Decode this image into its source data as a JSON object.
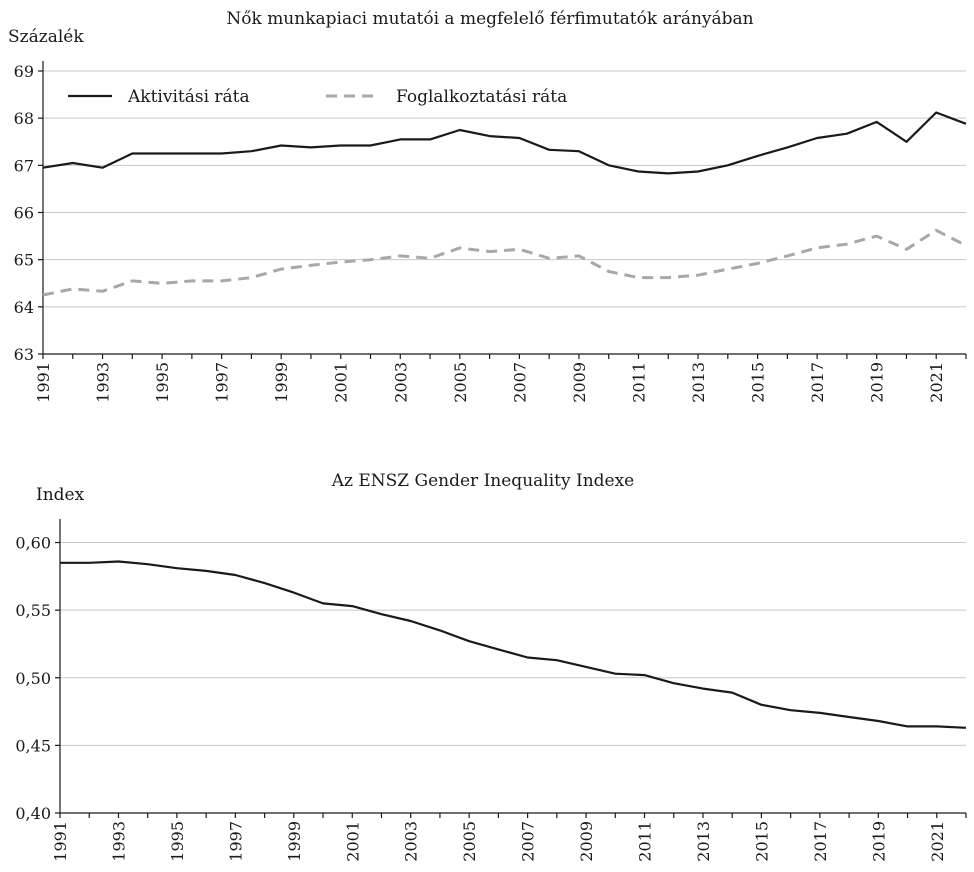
{
  "chart_data": [
    {
      "type": "line",
      "title": "Nők munkapiaci mutatói a megfelelő férfimutatók arányában",
      "ylabel": "Százalék",
      "xlabel": "",
      "x": [
        1991,
        1992,
        1993,
        1994,
        1995,
        1996,
        1997,
        1998,
        1999,
        2000,
        2001,
        2002,
        2003,
        2004,
        2005,
        2006,
        2007,
        2008,
        2009,
        2010,
        2011,
        2012,
        2013,
        2014,
        2015,
        2016,
        2017,
        2018,
        2019,
        2020,
        2021,
        2022
      ],
      "ylim": [
        63,
        69
      ],
      "yticks": [
        "63",
        "64",
        "65",
        "66",
        "67",
        "68",
        "69"
      ],
      "xticks": [
        "1991",
        "1993",
        "1995",
        "1997",
        "1999",
        "2001",
        "2003",
        "2005",
        "2007",
        "2009",
        "2011",
        "2013",
        "2015",
        "2017",
        "2019",
        "2021"
      ],
      "grid": true,
      "legend_position": "top-left",
      "series": [
        {
          "name": "Aktivitási ráta",
          "color": "#1a1a1a",
          "dash": "solid",
          "values": [
            66.95,
            67.05,
            66.95,
            67.25,
            67.25,
            67.25,
            67.25,
            67.3,
            67.42,
            67.38,
            67.42,
            67.42,
            67.55,
            67.55,
            67.75,
            67.62,
            67.58,
            67.33,
            67.3,
            67.0,
            66.87,
            66.83,
            66.87,
            67.0,
            67.2,
            67.38,
            67.58,
            67.67,
            67.92,
            67.5,
            68.12,
            67.88
          ]
        },
        {
          "name": "Foglalkoztatási ráta",
          "color": "#a8a8a8",
          "dash": "dashed",
          "values": [
            64.25,
            64.38,
            64.33,
            64.55,
            64.5,
            64.55,
            64.55,
            64.62,
            64.8,
            64.88,
            64.95,
            65.0,
            65.08,
            65.03,
            65.25,
            65.17,
            65.22,
            65.03,
            65.08,
            64.75,
            64.62,
            64.62,
            64.67,
            64.8,
            64.92,
            65.08,
            65.25,
            65.33,
            65.5,
            65.22,
            65.62,
            65.3
          ]
        }
      ]
    },
    {
      "type": "line",
      "title": "Az ENSZ Gender Inequality Indexe",
      "ylabel": "Index",
      "xlabel": "",
      "x": [
        1991,
        1992,
        1993,
        1994,
        1995,
        1996,
        1997,
        1998,
        1999,
        2000,
        2001,
        2002,
        2003,
        2004,
        2005,
        2006,
        2007,
        2008,
        2009,
        2010,
        2011,
        2012,
        2013,
        2014,
        2015,
        2016,
        2017,
        2018,
        2019,
        2020,
        2021,
        2022
      ],
      "ylim": [
        0.4,
        0.61
      ],
      "yticks": [
        "0,40",
        "0,45",
        "0,50",
        "0,55",
        "0,60"
      ],
      "xticks": [
        "1991",
        "1993",
        "1995",
        "1997",
        "1999",
        "2001",
        "2003",
        "2005",
        "2007",
        "2009",
        "2011",
        "2013",
        "2015",
        "2017",
        "2019",
        "2021"
      ],
      "grid": true,
      "series": [
        {
          "color": "#1a1a1a",
          "dash": "solid",
          "values": [
            0.585,
            0.585,
            0.586,
            0.584,
            0.581,
            0.579,
            0.576,
            0.57,
            0.563,
            0.555,
            0.553,
            0.547,
            0.542,
            0.535,
            0.527,
            0.521,
            0.515,
            0.513,
            0.508,
            0.503,
            0.502,
            0.496,
            0.492,
            0.489,
            0.48,
            0.476,
            0.474,
            0.471,
            0.468,
            0.464,
            0.464,
            0.463
          ]
        }
      ]
    }
  ]
}
